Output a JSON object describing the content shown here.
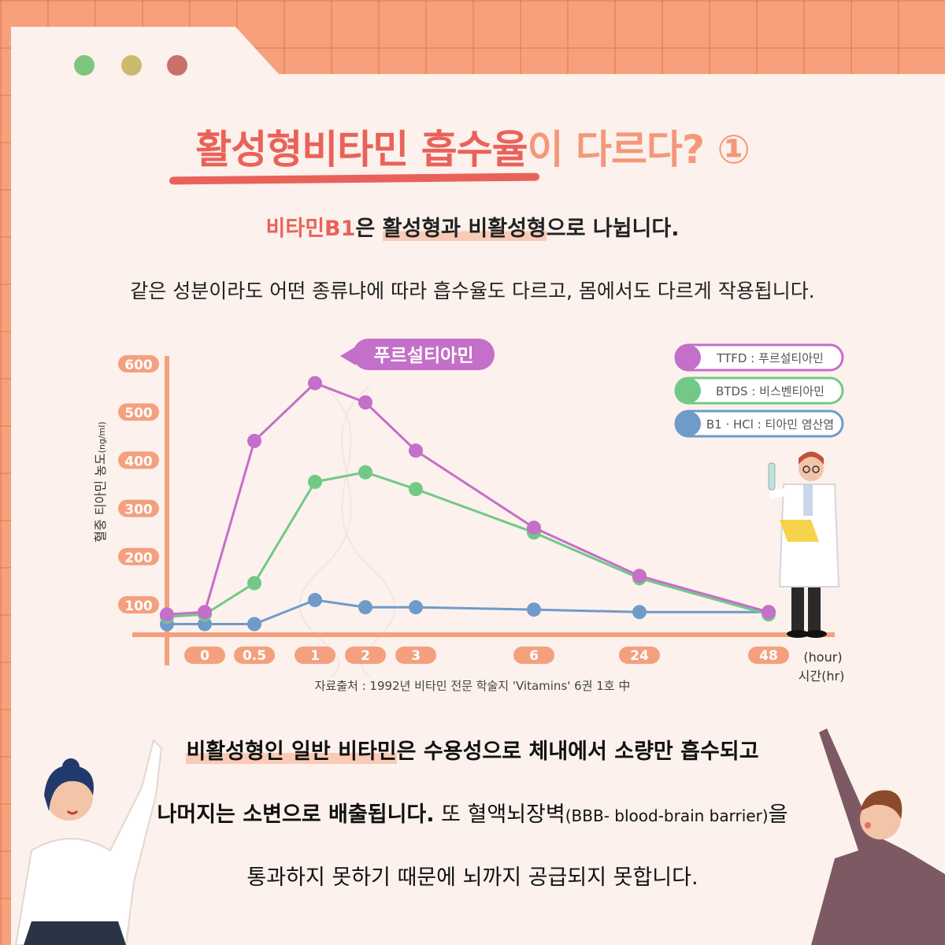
{
  "header": {
    "title_part1": "활성형비타민 흡수율",
    "title_part2": "이 다르다? ①",
    "subtitle_highlight": "비타민B1",
    "subtitle_rest_pre": "은 ",
    "subtitle_marked": "활성형과 비활성형",
    "subtitle_rest_post": "으로 나뉩니다.",
    "description": "같은 성분이라도 어떤 종류냐에 따라 흡수율도 다르고, 몸에서도 다르게 작용됩니다."
  },
  "colors": {
    "dot1": "#7DC67E",
    "dot2": "#C9BA6E",
    "dot3": "#C8706C",
    "purple": "#C46FC9",
    "green": "#72C987",
    "blue": "#6F9BC9",
    "axis": "#F4A07F"
  },
  "chart_data": {
    "type": "line",
    "callout": "푸르설티아민",
    "ylabel_main": "혈중 티아민 농도",
    "ylabel_unit": "(ng/ml)",
    "xlabel_unit": "(hour)",
    "xlabel_main": "시간(hr)",
    "source": "자료출처 : 1992년  비타민 전문 학술지 'Vitamins' 6권 1호 中",
    "y_ticks": [
      "600",
      "500",
      "400",
      "300",
      "200",
      "100"
    ],
    "x_ticks": [
      "0",
      "0.5",
      "1",
      "2",
      "3",
      "6",
      "24",
      "48"
    ],
    "x_positions": [
      -0.25,
      0,
      0.5,
      1,
      2,
      3,
      6,
      24,
      48
    ],
    "series": [
      {
        "name": "TTFD : 푸르설티아민",
        "color": "#C46FC9",
        "values": [
          80,
          85,
          440,
          560,
          520,
          420,
          260,
          160,
          85
        ]
      },
      {
        "name": "BTDS : 비스벤티아민",
        "color": "#72C987",
        "values": [
          75,
          80,
          145,
          355,
          375,
          340,
          250,
          155,
          80
        ]
      },
      {
        "name": "B1 · HCl : 티아민 염산염",
        "color": "#6F9BC9",
        "values": [
          60,
          60,
          60,
          110,
          95,
          95,
          90,
          85,
          85
        ]
      }
    ]
  },
  "bottom": {
    "line1_marked": "비활성형인 일반 비타민",
    "line1_rest": "은 수용성으로 체내에서 소량만 흡수되고",
    "line2_bold": "나머지는 소변으로 배출됩니다.",
    "line2_rest": " 또 혈액뇌장벽",
    "line2_small": "(BBB- blood-brain barrier)",
    "line2_end": "을",
    "line3": "통과하지 못하기 때문에 뇌까지 공급되지 못합니다."
  }
}
